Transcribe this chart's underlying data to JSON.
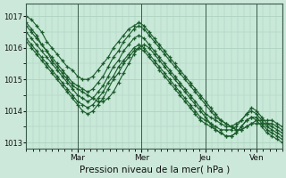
{
  "xlabel": "Pression niveau de la mer( hPa )",
  "bg_color": "#cce8da",
  "plot_bg_color": "#c8e8d8",
  "grid_color": "#aacfbc",
  "line_color": "#1a5c2a",
  "ylim": [
    1012.8,
    1017.4
  ],
  "yticks": [
    1013,
    1014,
    1015,
    1016,
    1017
  ],
  "day_labels": [
    "Mar",
    "Mer",
    "Jeu",
    "Ven"
  ],
  "day_positions": [
    0.2,
    0.45,
    0.7,
    0.9
  ],
  "series": [
    {
      "x": [
        0.0,
        0.02,
        0.04,
        0.06,
        0.08,
        0.1,
        0.12,
        0.14,
        0.16,
        0.18,
        0.2,
        0.22,
        0.24,
        0.26,
        0.28,
        0.3,
        0.32,
        0.34,
        0.36,
        0.38,
        0.4,
        0.42,
        0.44,
        0.46,
        0.48,
        0.5,
        0.52,
        0.54,
        0.56,
        0.58,
        0.6,
        0.62,
        0.64,
        0.66,
        0.68,
        0.7,
        0.72,
        0.74,
        0.76,
        0.78,
        0.8,
        0.82,
        0.84,
        0.86,
        0.88,
        0.9,
        0.92,
        0.94,
        0.96,
        0.98,
        1.0
      ],
      "y": [
        1017.0,
        1016.9,
        1016.7,
        1016.5,
        1016.2,
        1016.0,
        1015.8,
        1015.6,
        1015.4,
        1015.3,
        1015.1,
        1015.0,
        1015.0,
        1015.1,
        1015.3,
        1015.5,
        1015.7,
        1016.0,
        1016.2,
        1016.4,
        1016.6,
        1016.7,
        1016.8,
        1016.7,
        1016.5,
        1016.3,
        1016.1,
        1015.9,
        1015.7,
        1015.5,
        1015.3,
        1015.1,
        1014.9,
        1014.7,
        1014.5,
        1014.3,
        1014.1,
        1013.9,
        1013.7,
        1013.6,
        1013.5,
        1013.4,
        1013.4,
        1013.5,
        1013.6,
        1013.7,
        1013.7,
        1013.7,
        1013.7,
        1013.6,
        1013.5
      ]
    },
    {
      "x": [
        0.0,
        0.02,
        0.04,
        0.06,
        0.08,
        0.1,
        0.12,
        0.14,
        0.16,
        0.18,
        0.2,
        0.22,
        0.24,
        0.26,
        0.28,
        0.3,
        0.32,
        0.34,
        0.36,
        0.38,
        0.4,
        0.42,
        0.44,
        0.46,
        0.48,
        0.5,
        0.52,
        0.54,
        0.56,
        0.58,
        0.6,
        0.62,
        0.64,
        0.66,
        0.68,
        0.7,
        0.72,
        0.74,
        0.76,
        0.78,
        0.8,
        0.82,
        0.84,
        0.86,
        0.88,
        0.9,
        0.92,
        0.94,
        0.96,
        0.98,
        1.0
      ],
      "y": [
        1016.7,
        1016.5,
        1016.3,
        1016.1,
        1015.9,
        1015.7,
        1015.5,
        1015.3,
        1015.1,
        1014.9,
        1014.8,
        1014.7,
        1014.6,
        1014.7,
        1014.9,
        1015.1,
        1015.4,
        1015.7,
        1015.9,
        1016.2,
        1016.4,
        1016.6,
        1016.7,
        1016.6,
        1016.4,
        1016.2,
        1016.0,
        1015.8,
        1015.6,
        1015.4,
        1015.2,
        1015.0,
        1014.8,
        1014.6,
        1014.4,
        1014.2,
        1014.0,
        1013.8,
        1013.7,
        1013.6,
        1013.5,
        1013.4,
        1013.4,
        1013.5,
        1013.6,
        1013.6,
        1013.6,
        1013.6,
        1013.6,
        1013.5,
        1013.4
      ]
    },
    {
      "x": [
        0.0,
        0.02,
        0.04,
        0.06,
        0.08,
        0.1,
        0.12,
        0.14,
        0.16,
        0.18,
        0.2,
        0.22,
        0.24,
        0.26,
        0.28,
        0.3,
        0.32,
        0.34,
        0.36,
        0.38,
        0.4,
        0.42,
        0.44,
        0.46,
        0.48,
        0.5,
        0.52,
        0.54,
        0.56,
        0.58,
        0.6,
        0.62,
        0.64,
        0.66,
        0.68,
        0.7,
        0.72,
        0.74,
        0.76,
        0.78,
        0.8,
        0.82,
        0.84,
        0.86,
        0.88,
        0.9,
        0.92,
        0.94,
        0.96,
        0.98,
        1.0
      ],
      "y": [
        1016.5,
        1016.3,
        1016.1,
        1015.9,
        1015.7,
        1015.5,
        1015.3,
        1015.1,
        1014.9,
        1014.7,
        1014.5,
        1014.4,
        1014.3,
        1014.4,
        1014.6,
        1014.8,
        1015.1,
        1015.4,
        1015.6,
        1015.9,
        1016.1,
        1016.3,
        1016.4,
        1016.3,
        1016.1,
        1015.9,
        1015.7,
        1015.5,
        1015.3,
        1015.1,
        1014.9,
        1014.7,
        1014.5,
        1014.3,
        1014.1,
        1013.9,
        1013.8,
        1013.7,
        1013.6,
        1013.5,
        1013.5,
        1013.6,
        1013.7,
        1013.9,
        1014.1,
        1014.0,
        1013.8,
        1013.6,
        1013.5,
        1013.4,
        1013.3
      ]
    },
    {
      "x": [
        0.0,
        0.02,
        0.04,
        0.06,
        0.08,
        0.1,
        0.12,
        0.14,
        0.16,
        0.18,
        0.2,
        0.22,
        0.24,
        0.26,
        0.28,
        0.3,
        0.32,
        0.34,
        0.36,
        0.38,
        0.4,
        0.42,
        0.44,
        0.46,
        0.48,
        0.5,
        0.52,
        0.54,
        0.56,
        0.58,
        0.6,
        0.62,
        0.64,
        0.66,
        0.68,
        0.7,
        0.72,
        0.74,
        0.76,
        0.78,
        0.8,
        0.82,
        0.84,
        0.86,
        0.88,
        0.9,
        0.92,
        0.94,
        0.96,
        0.98,
        1.0
      ],
      "y": [
        1016.3,
        1016.1,
        1015.9,
        1015.7,
        1015.5,
        1015.3,
        1015.1,
        1014.9,
        1014.7,
        1014.5,
        1014.3,
        1014.2,
        1014.1,
        1014.2,
        1014.4,
        1014.6,
        1014.9,
        1015.1,
        1015.4,
        1015.6,
        1015.8,
        1016.0,
        1016.1,
        1016.0,
        1015.8,
        1015.6,
        1015.4,
        1015.2,
        1015.0,
        1014.8,
        1014.6,
        1014.4,
        1014.2,
        1014.0,
        1013.8,
        1013.7,
        1013.6,
        1013.5,
        1013.4,
        1013.4,
        1013.4,
        1013.5,
        1013.7,
        1013.9,
        1014.0,
        1013.9,
        1013.7,
        1013.5,
        1013.4,
        1013.3,
        1013.2
      ]
    },
    {
      "x": [
        0.0,
        0.02,
        0.04,
        0.06,
        0.08,
        0.1,
        0.12,
        0.14,
        0.16,
        0.18,
        0.2,
        0.22,
        0.24,
        0.26,
        0.28,
        0.3,
        0.32,
        0.34,
        0.36,
        0.38,
        0.4,
        0.42,
        0.44,
        0.46,
        0.48,
        0.5,
        0.52,
        0.54,
        0.56,
        0.58,
        0.6,
        0.62,
        0.64,
        0.66,
        0.68,
        0.7,
        0.72,
        0.74,
        0.76,
        0.78,
        0.8,
        0.82,
        0.84,
        0.86,
        0.88,
        0.9,
        0.92,
        0.94,
        0.96,
        0.98,
        1.0
      ],
      "y": [
        1016.8,
        1016.6,
        1016.4,
        1016.1,
        1015.9,
        1015.6,
        1015.4,
        1015.2,
        1015.0,
        1014.8,
        1014.7,
        1014.6,
        1014.5,
        1014.4,
        1014.3,
        1014.3,
        1014.4,
        1014.6,
        1014.9,
        1015.2,
        1015.5,
        1015.8,
        1016.0,
        1016.1,
        1016.0,
        1015.8,
        1015.6,
        1015.4,
        1015.2,
        1015.0,
        1014.8,
        1014.6,
        1014.4,
        1014.2,
        1014.0,
        1013.8,
        1013.6,
        1013.4,
        1013.3,
        1013.2,
        1013.2,
        1013.3,
        1013.5,
        1013.7,
        1013.8,
        1013.8,
        1013.6,
        1013.4,
        1013.3,
        1013.2,
        1013.1
      ]
    },
    {
      "x": [
        0.0,
        0.02,
        0.04,
        0.06,
        0.08,
        0.1,
        0.12,
        0.14,
        0.16,
        0.18,
        0.2,
        0.22,
        0.24,
        0.26,
        0.28,
        0.3,
        0.32,
        0.34,
        0.36,
        0.38,
        0.4,
        0.42,
        0.44,
        0.46,
        0.48,
        0.5,
        0.52,
        0.54,
        0.56,
        0.58,
        0.6,
        0.62,
        0.64,
        0.66,
        0.68,
        0.7,
        0.72,
        0.74,
        0.76,
        0.78,
        0.8,
        0.82,
        0.84,
        0.86,
        0.88,
        0.9,
        0.92,
        0.94,
        0.96,
        0.98,
        1.0
      ],
      "y": [
        1016.2,
        1016.0,
        1015.8,
        1015.6,
        1015.4,
        1015.2,
        1015.0,
        1014.8,
        1014.6,
        1014.4,
        1014.2,
        1014.0,
        1013.9,
        1014.0,
        1014.2,
        1014.4,
        1014.7,
        1015.0,
        1015.2,
        1015.5,
        1015.7,
        1015.9,
        1016.0,
        1015.9,
        1015.7,
        1015.5,
        1015.3,
        1015.1,
        1014.9,
        1014.7,
        1014.5,
        1014.3,
        1014.1,
        1013.9,
        1013.7,
        1013.6,
        1013.5,
        1013.4,
        1013.3,
        1013.2,
        1013.2,
        1013.3,
        1013.5,
        1013.7,
        1013.8,
        1013.7,
        1013.5,
        1013.3,
        1013.2,
        1013.1,
        1013.0
      ]
    }
  ]
}
